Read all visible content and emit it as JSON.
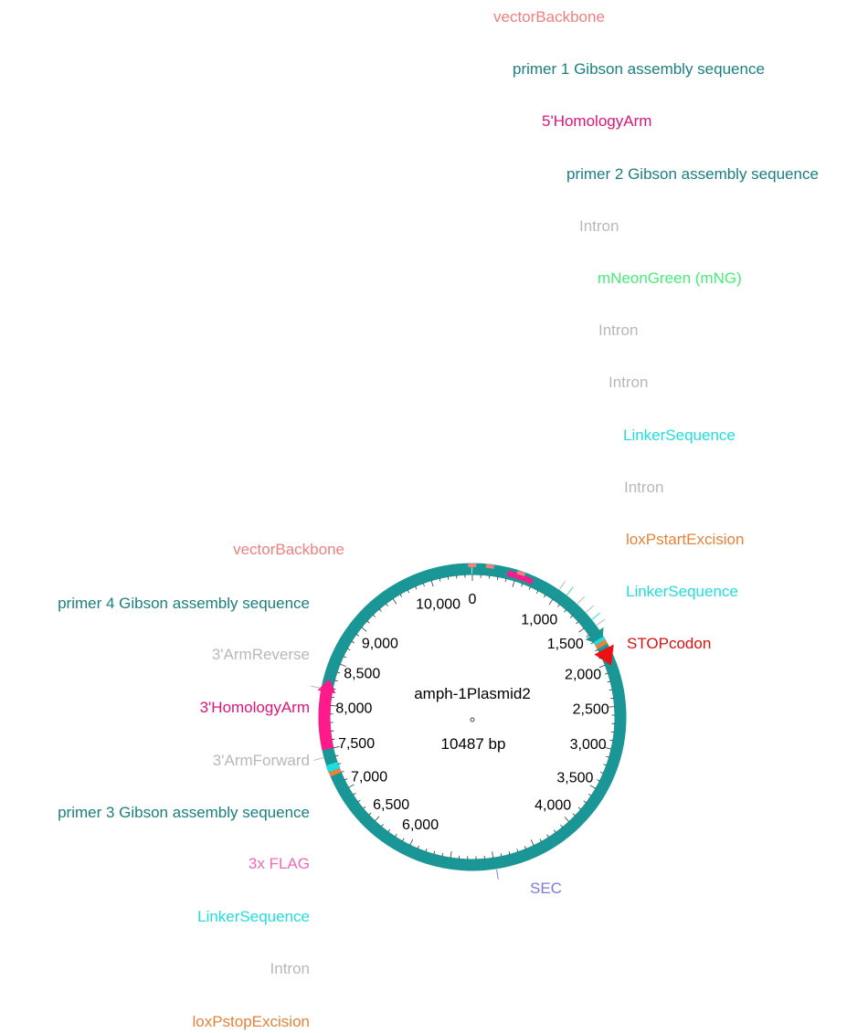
{
  "plasmid": {
    "name": "amph-1Plasmid2",
    "length_label": "10487 bp",
    "length_bp": 10487
  },
  "ticks": [
    {
      "bp": 0,
      "label": "0"
    },
    {
      "bp": 1000,
      "label": "1,000"
    },
    {
      "bp": 1500,
      "label": "1,500"
    },
    {
      "bp": 2000,
      "label": "2,000"
    },
    {
      "bp": 2500,
      "label": "2,500"
    },
    {
      "bp": 3000,
      "label": "3,000"
    },
    {
      "bp": 3500,
      "label": "3,500"
    },
    {
      "bp": 4000,
      "label": "4,000"
    },
    {
      "bp": 6000,
      "label": "6,000"
    },
    {
      "bp": 6500,
      "label": "6,500"
    },
    {
      "bp": 7000,
      "label": "7,000"
    },
    {
      "bp": 7500,
      "label": "7,500"
    },
    {
      "bp": 8000,
      "label": "8,000"
    },
    {
      "bp": 8500,
      "label": "8,500"
    },
    {
      "bp": 9000,
      "label": "9,000"
    },
    {
      "bp": 10000,
      "label": "10,000"
    }
  ],
  "features": [
    {
      "name": "vectorBackbone",
      "color": "#f08080",
      "bp": 10480
    },
    {
      "name": "primer 1 Gibson assembly sequence",
      "color": "#1a7f7f",
      "bp": 150
    },
    {
      "name": "5'HomologyArm",
      "color": "#e0147a",
      "bp": 500
    },
    {
      "name": "primer 2 Gibson assembly sequence",
      "color": "#1a7f7f",
      "bp": 820
    },
    {
      "name": "Intron",
      "color": "#b8b8b8",
      "bp": 1000
    },
    {
      "name": "mNeonGreen (mNG)",
      "color": "#44ee77",
      "bp": 1100
    },
    {
      "name": "Intron",
      "color": "#b8b8b8",
      "bp": 1250
    },
    {
      "name": "Intron",
      "color": "#b8b8b8",
      "bp": 1380
    },
    {
      "name": "LinkerSequence",
      "color": "#22dddd",
      "bp": 1480
    },
    {
      "name": "Intron",
      "color": "#b8b8b8",
      "bp": 1560
    },
    {
      "name": "loxPstartExcision",
      "color": "#e8823a",
      "bp": 1640
    },
    {
      "name": "LinkerSequence",
      "color": "#22dddd",
      "bp": 1700
    },
    {
      "name": "STOPcodon",
      "color": "#dd1111",
      "bp": 1760
    },
    {
      "name": "SEC",
      "color": "#7a7ae0",
      "bp": 4980
    },
    {
      "name": "loxPstopExcision",
      "color": "#e8823a",
      "bp": 7200
    },
    {
      "name": "Intron",
      "color": "#b8b8b8",
      "bp": 7230
    },
    {
      "name": "LinkerSequence",
      "color": "#22dddd",
      "bp": 7270
    },
    {
      "name": "3x FLAG",
      "color": "#f06ab4",
      "bp": 7300
    },
    {
      "name": "primer 3 Gibson assembly sequence",
      "color": "#1a7f7f",
      "bp": 7350
    },
    {
      "name": "3'ArmForward",
      "color": "#b8b8b8",
      "bp": 7420
    },
    {
      "name": "3'HomologyArm",
      "color": "#e0147a",
      "bp": 7800
    },
    {
      "name": "3'ArmReverse",
      "color": "#b8b8b8",
      "bp": 8180
    },
    {
      "name": "primer 4 Gibson assembly sequence",
      "color": "#1a7f7f",
      "bp": 8230
    },
    {
      "name": "vectorBackbone",
      "color": "#f08080",
      "bp": 10400
    }
  ],
  "colors": {
    "backbone": "#1a9696",
    "homology_arm": "#ff1a8c",
    "stop_codon": "#ee1111",
    "linker": "#22dddd",
    "lox": "#e8823a"
  }
}
